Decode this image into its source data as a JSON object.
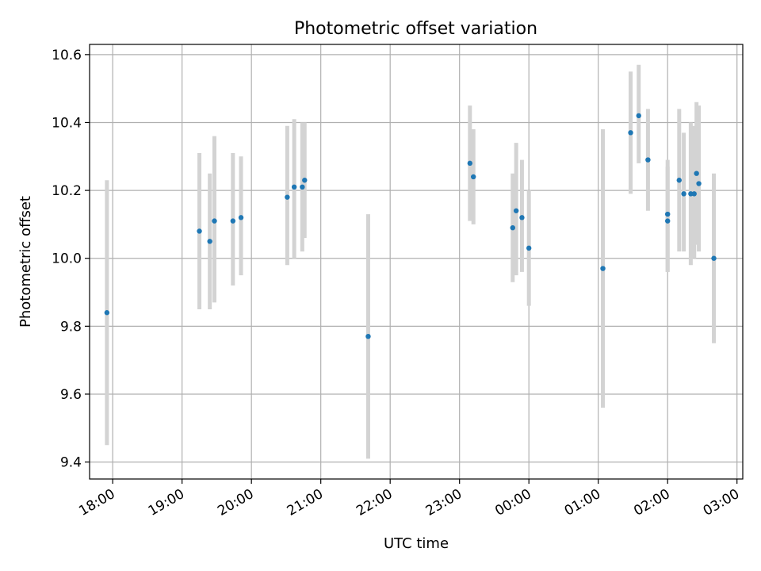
{
  "chart_data": {
    "type": "scatter",
    "title": "Photometric offset variation",
    "xlabel": "UTC time",
    "ylabel": "Photometric offset",
    "grid": true,
    "colors": {
      "points": "#1f77b4",
      "errorbars": "#d3d3d3",
      "grid": "#b0b0b0"
    },
    "xlim": [
      "17:40",
      "27:05"
    ],
    "ylim": [
      9.35,
      10.63
    ],
    "x_ticks": [
      "18:00",
      "19:00",
      "20:00",
      "21:00",
      "22:00",
      "23:00",
      "00:00",
      "01:00",
      "02:00",
      "03:00"
    ],
    "y_ticks": [
      "9.4",
      "9.6",
      "9.8",
      "10.0",
      "10.2",
      "10.4",
      "10.6"
    ],
    "series": [
      {
        "points": [
          {
            "t": "17:55",
            "y": 9.84,
            "lo": 9.45,
            "hi": 10.23
          },
          {
            "t": "19:15",
            "y": 10.08,
            "lo": 9.85,
            "hi": 10.31
          },
          {
            "t": "19:24",
            "y": 10.05,
            "lo": 9.85,
            "hi": 10.25
          },
          {
            "t": "19:28",
            "y": 10.11,
            "lo": 9.87,
            "hi": 10.36
          },
          {
            "t": "19:44",
            "y": 10.11,
            "lo": 9.92,
            "hi": 10.31
          },
          {
            "t": "19:51",
            "y": 10.12,
            "lo": 9.95,
            "hi": 10.3
          },
          {
            "t": "20:31",
            "y": 10.18,
            "lo": 9.98,
            "hi": 10.39
          },
          {
            "t": "20:37",
            "y": 10.21,
            "lo": 10.0,
            "hi": 10.41
          },
          {
            "t": "20:44",
            "y": 10.21,
            "lo": 10.02,
            "hi": 10.4
          },
          {
            "t": "20:46",
            "y": 10.23,
            "lo": 10.06,
            "hi": 10.4
          },
          {
            "t": "21:41",
            "y": 9.77,
            "lo": 9.41,
            "hi": 10.13
          },
          {
            "t": "23:09",
            "y": 10.28,
            "lo": 10.11,
            "hi": 10.45
          },
          {
            "t": "23:12",
            "y": 10.24,
            "lo": 10.1,
            "hi": 10.38
          },
          {
            "t": "23:46",
            "y": 10.09,
            "lo": 9.93,
            "hi": 10.25
          },
          {
            "t": "23:49",
            "y": 10.14,
            "lo": 9.95,
            "hi": 10.34
          },
          {
            "t": "23:54",
            "y": 10.12,
            "lo": 9.96,
            "hi": 10.29
          },
          {
            "t": "24:00",
            "y": 10.03,
            "lo": 9.86,
            "hi": 10.2
          },
          {
            "t": "25:04",
            "y": 9.97,
            "lo": 9.56,
            "hi": 10.38
          },
          {
            "t": "25:28",
            "y": 10.37,
            "lo": 10.19,
            "hi": 10.55
          },
          {
            "t": "25:35",
            "y": 10.42,
            "lo": 10.28,
            "hi": 10.57
          },
          {
            "t": "25:43",
            "y": 10.29,
            "lo": 10.14,
            "hi": 10.44
          },
          {
            "t": "26:00",
            "y": 10.13,
            "lo": 9.96,
            "hi": 10.29
          },
          {
            "t": "26:00",
            "y": 10.11,
            "lo": 9.96,
            "hi": 10.27
          },
          {
            "t": "26:10",
            "y": 10.23,
            "lo": 10.02,
            "hi": 10.44
          },
          {
            "t": "26:14",
            "y": 10.19,
            "lo": 10.02,
            "hi": 10.37
          },
          {
            "t": "26:20",
            "y": 10.19,
            "lo": 9.98,
            "hi": 10.4
          },
          {
            "t": "26:23",
            "y": 10.19,
            "lo": 10.0,
            "hi": 10.39
          },
          {
            "t": "26:25",
            "y": 10.25,
            "lo": 10.04,
            "hi": 10.46
          },
          {
            "t": "26:27",
            "y": 10.22,
            "lo": 10.02,
            "hi": 10.45
          },
          {
            "t": "26:40",
            "y": 10.0,
            "lo": 9.75,
            "hi": 10.25
          }
        ]
      }
    ]
  }
}
